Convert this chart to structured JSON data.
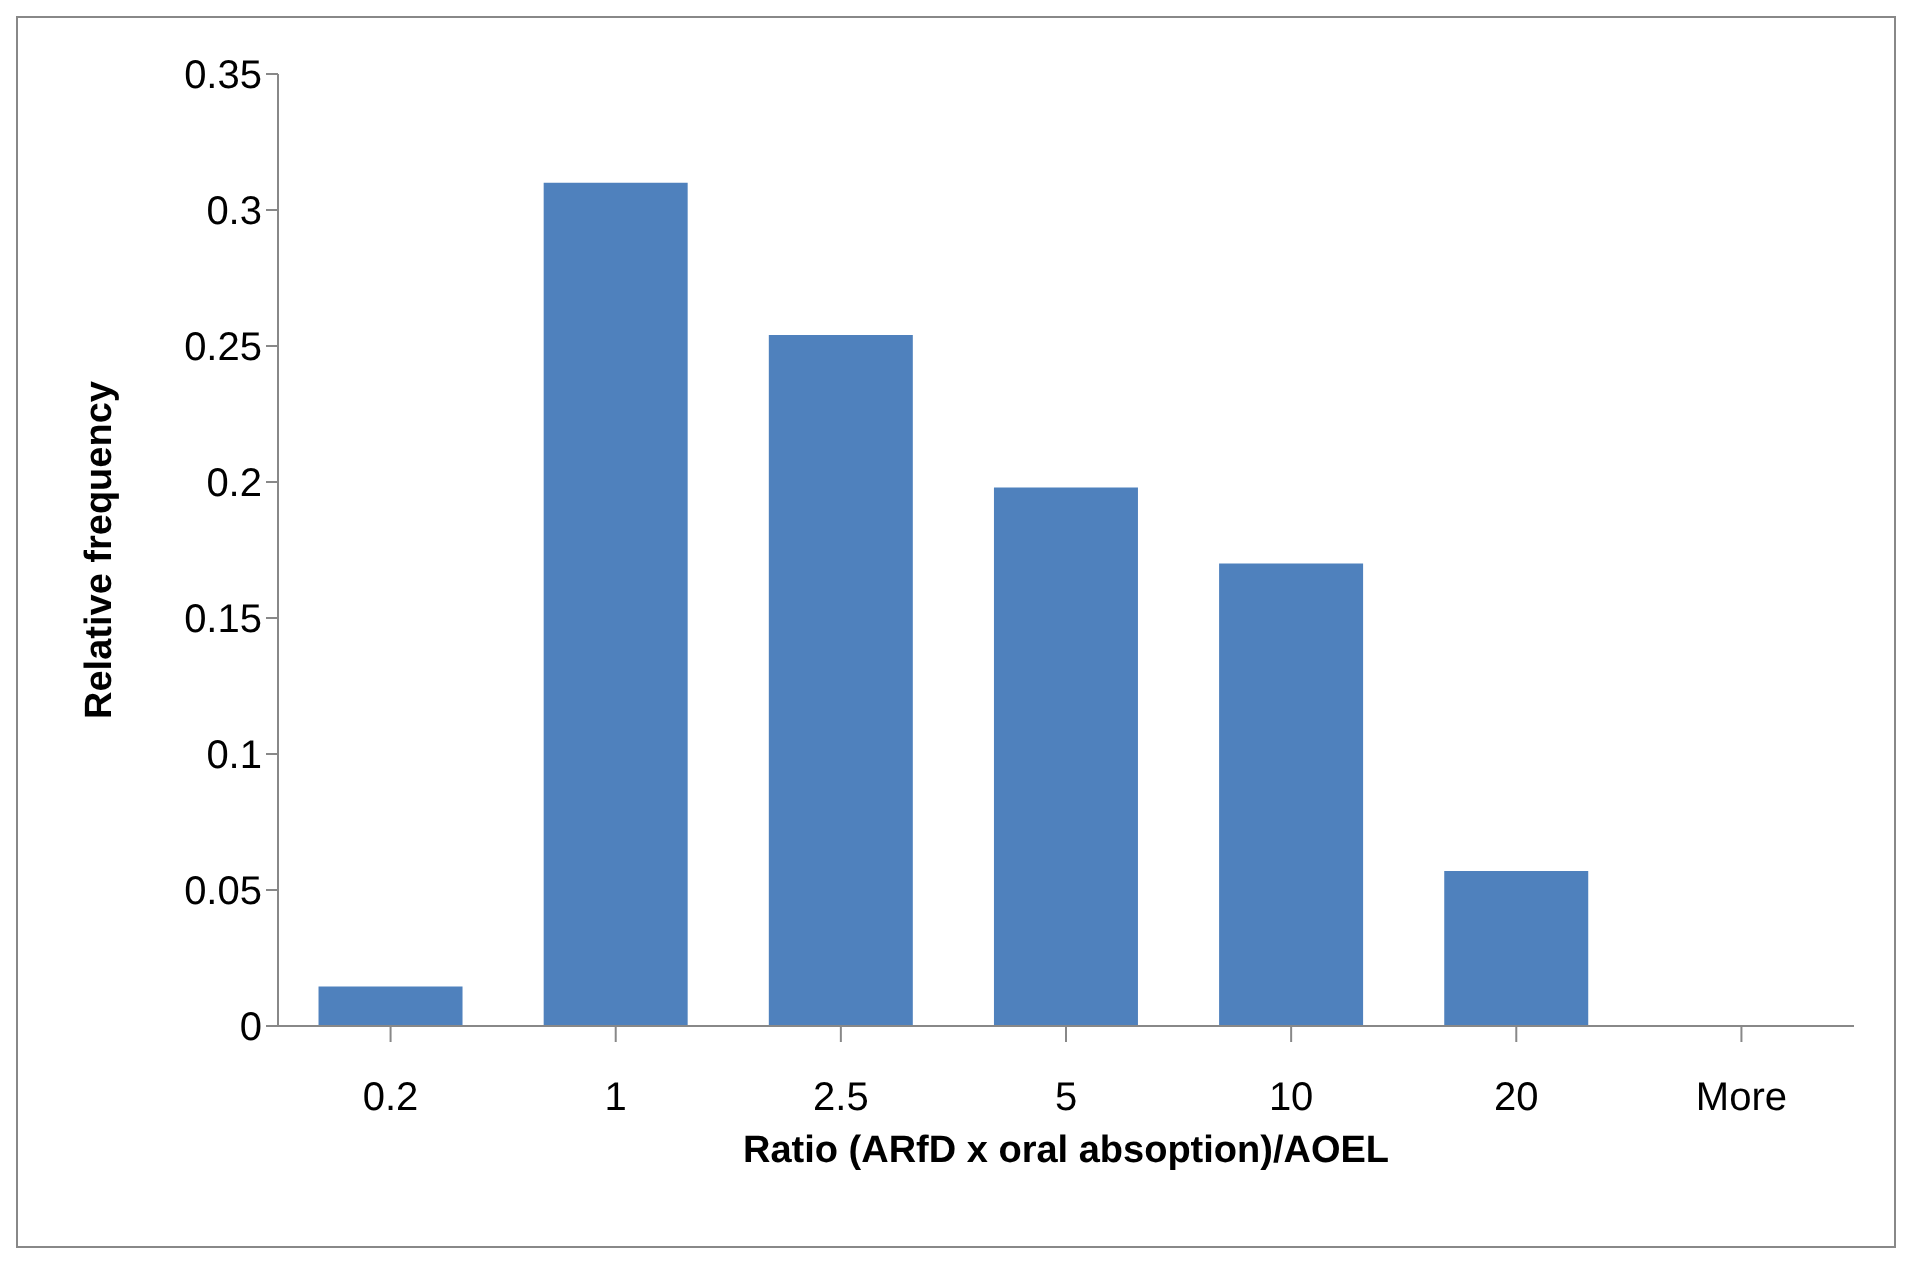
{
  "chart_data": {
    "type": "bar",
    "xlabel": "Ratio (ARfD  x oral absoption)/AOEL",
    "ylabel": "Relative frequency",
    "categories": [
      "0.2",
      "1",
      "2.5",
      "5",
      "10",
      "20",
      "More"
    ],
    "values": [
      0.0145,
      0.31,
      0.254,
      0.198,
      0.17,
      0.057,
      0
    ],
    "color": "#4f81bd",
    "ylim": [
      0,
      0.35
    ],
    "yticks": [
      0,
      0.05,
      0.1,
      0.15,
      0.2,
      0.25,
      0.3,
      0.35
    ],
    "grid": false,
    "legend": false
  }
}
